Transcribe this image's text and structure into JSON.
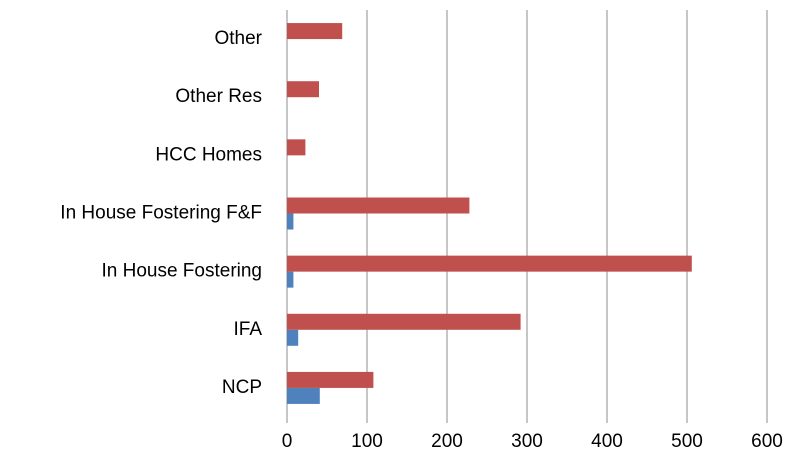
{
  "chart_data": {
    "type": "hbar",
    "categories": [
      "NCP",
      "IFA",
      "In House Fostering",
      "In House Fostering F&F",
      "HCC Homes",
      "Other Res",
      "Other"
    ],
    "series": [
      {
        "color": "#4f81bd",
        "values": [
          41,
          14,
          8,
          8,
          0,
          0,
          0
        ]
      },
      {
        "color": "#c0504d",
        "values": [
          108,
          292,
          506,
          228,
          23,
          40,
          69
        ]
      }
    ],
    "xlim": [
      0,
      600
    ],
    "xticks": [
      0,
      100,
      200,
      300,
      400,
      500,
      600
    ],
    "grid": true
  }
}
